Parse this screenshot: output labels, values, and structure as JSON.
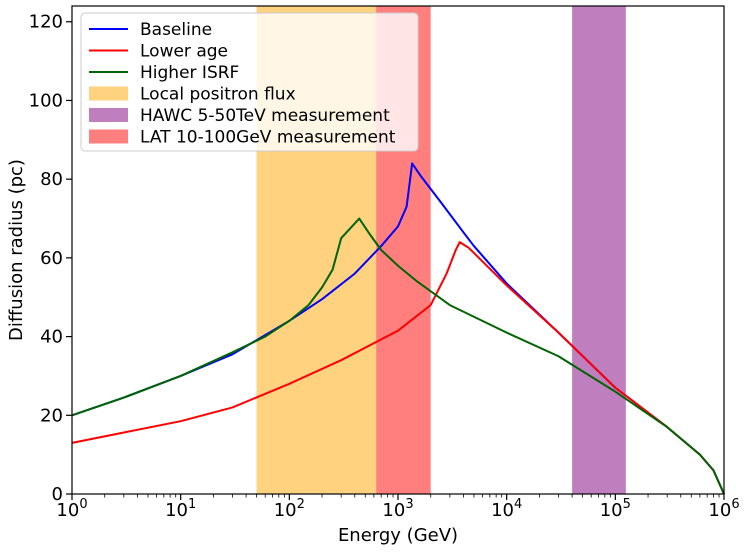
{
  "chart_data": {
    "type": "line",
    "title": "",
    "xlabel": "Energy (GeV)",
    "ylabel": "Diffusion radius (pc)",
    "xscale": "log",
    "xlim": [
      1,
      1000000
    ],
    "ylim": [
      0,
      124
    ],
    "x_ticks": [
      {
        "value": 1,
        "base": "10",
        "exp": "0"
      },
      {
        "value": 10,
        "base": "10",
        "exp": "1"
      },
      {
        "value": 100,
        "base": "10",
        "exp": "2"
      },
      {
        "value": 1000,
        "base": "10",
        "exp": "3"
      },
      {
        "value": 10000,
        "base": "10",
        "exp": "4"
      },
      {
        "value": 100000,
        "base": "10",
        "exp": "5"
      },
      {
        "value": 1000000,
        "base": "10",
        "exp": "6"
      }
    ],
    "y_ticks": [
      0,
      20,
      40,
      60,
      80,
      100,
      120
    ],
    "legend_position": "top-left",
    "bands": [
      {
        "name": "Local positron flux",
        "x_range": [
          50,
          630
        ],
        "color": "#ffa500",
        "opacity": 0.5
      },
      {
        "name": "HAWC 5-50TeV measurement",
        "x_range": [
          40000,
          125000
        ],
        "color": "#800080",
        "opacity": 0.5
      },
      {
        "name": "LAT 10-100GeV measurement",
        "x_range": [
          630,
          2000
        ],
        "color": "#ff0000",
        "opacity": 0.5
      }
    ],
    "series": [
      {
        "name": "Baseline",
        "color": "#0000ff",
        "points": [
          [
            1,
            20
          ],
          [
            3,
            24.5
          ],
          [
            10,
            30
          ],
          [
            30,
            35.5
          ],
          [
            100,
            44
          ],
          [
            200,
            49.5
          ],
          [
            400,
            56
          ],
          [
            700,
            63
          ],
          [
            1000,
            68
          ],
          [
            1200,
            73
          ],
          [
            1350,
            84
          ],
          [
            1600,
            81
          ],
          [
            2500,
            74
          ],
          [
            4000,
            66.5
          ],
          [
            5000,
            63
          ],
          [
            10000,
            53.5
          ],
          [
            30000,
            41
          ],
          [
            100000,
            27
          ],
          [
            300000,
            17
          ],
          [
            600000,
            10
          ],
          [
            800000,
            6
          ],
          [
            1000000,
            0
          ]
        ]
      },
      {
        "name": "Lower age",
        "color": "#ff0000",
        "points": [
          [
            1,
            13
          ],
          [
            10,
            18.5
          ],
          [
            30,
            22
          ],
          [
            100,
            28
          ],
          [
            300,
            34
          ],
          [
            1000,
            41.5
          ],
          [
            2000,
            48
          ],
          [
            2800,
            56
          ],
          [
            3400,
            62
          ],
          [
            3700,
            64
          ],
          [
            4500,
            62.5
          ],
          [
            10000,
            53
          ],
          [
            30000,
            41
          ],
          [
            100000,
            27
          ],
          [
            300000,
            17
          ],
          [
            600000,
            10
          ],
          [
            800000,
            6
          ],
          [
            1000000,
            0
          ]
        ]
      },
      {
        "name": "Higher ISRF",
        "color": "#006400",
        "points": [
          [
            1,
            20
          ],
          [
            3,
            24.5
          ],
          [
            10,
            30
          ],
          [
            30,
            36
          ],
          [
            60,
            40
          ],
          [
            100,
            44
          ],
          [
            150,
            48
          ],
          [
            200,
            52.5
          ],
          [
            250,
            57
          ],
          [
            300,
            65
          ],
          [
            440,
            70
          ],
          [
            550,
            66
          ],
          [
            700,
            62
          ],
          [
            1000,
            58
          ],
          [
            1500,
            54
          ],
          [
            3000,
            48
          ],
          [
            10000,
            41
          ],
          [
            30000,
            35
          ],
          [
            100000,
            26
          ],
          [
            300000,
            17
          ],
          [
            600000,
            10
          ],
          [
            800000,
            6
          ],
          [
            1000000,
            0
          ]
        ]
      }
    ]
  }
}
